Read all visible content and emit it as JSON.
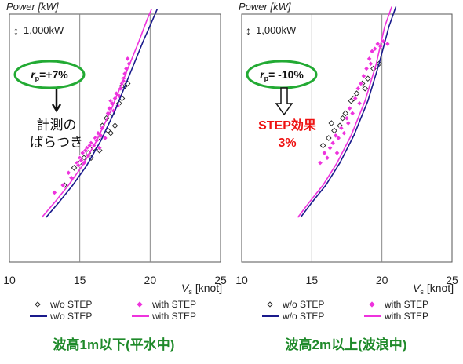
{
  "colors": {
    "without": "#1a1a8c",
    "with": "#ee33dd",
    "green": "#22aa33",
    "red": "#ee1111",
    "caption": "#1f8a2a"
  },
  "icons": {
    "scale_arrow": "updown-arrow-icon",
    "down_arrow": "down-arrow-icon",
    "hollow_down_arrow": "hollow-down-arrow-icon"
  },
  "chart_data": [
    {
      "type": "scatter",
      "title": "",
      "ylabel": "Power [kW]",
      "xlabel_var": "V",
      "xlabel_sub": "s",
      "xlabel_unit": "[knot]",
      "xlim": [
        10,
        25
      ],
      "x_ticks": [
        "10",
        "15",
        "20",
        "25"
      ],
      "grid_x": [
        15,
        20
      ],
      "scale_note": "1,000kW",
      "rp_prefix": "r",
      "rp_sub": "p",
      "rp_value": "=+7%",
      "annotation_lines": [
        "計測の",
        "ばらつき"
      ],
      "caption": "波高1m以下(平水中)",
      "legend": [
        {
          "marker": "diamond",
          "label": "w/o STEP"
        },
        {
          "marker": "diamond",
          "label": "with STEP"
        },
        {
          "marker": "line",
          "label": "w/o STEP"
        },
        {
          "marker": "line",
          "label": "with STEP"
        }
      ],
      "series": [
        {
          "name": "w/o STEP",
          "kind": "scatter",
          "points": [
            [
              13.9,
              0.31
            ],
            [
              14.6,
              0.38
            ],
            [
              15.0,
              0.4
            ],
            [
              15.3,
              0.42
            ],
            [
              15.6,
              0.44
            ],
            [
              16.0,
              0.46
            ],
            [
              16.3,
              0.5
            ],
            [
              16.6,
              0.55
            ],
            [
              16.9,
              0.58
            ],
            [
              17.2,
              0.52
            ],
            [
              17.5,
              0.55
            ],
            [
              17.8,
              0.64
            ],
            [
              18.0,
              0.66
            ],
            [
              18.2,
              0.71
            ],
            [
              18.4,
              0.72
            ],
            [
              15.8,
              0.42
            ],
            [
              16.4,
              0.45
            ],
            [
              17.0,
              0.53
            ],
            [
              18.0,
              0.71
            ],
            [
              17.3,
              0.6
            ]
          ]
        },
        {
          "name": "with STEP",
          "kind": "scatter",
          "points": [
            [
              13.2,
              0.28
            ],
            [
              13.8,
              0.31
            ],
            [
              14.2,
              0.36
            ],
            [
              14.8,
              0.4
            ],
            [
              15.0,
              0.42
            ],
            [
              15.2,
              0.44
            ],
            [
              15.3,
              0.4
            ],
            [
              15.5,
              0.46
            ],
            [
              15.6,
              0.43
            ],
            [
              15.8,
              0.48
            ],
            [
              16.0,
              0.47
            ],
            [
              16.1,
              0.5
            ],
            [
              16.3,
              0.52
            ],
            [
              16.4,
              0.46
            ],
            [
              16.6,
              0.54
            ],
            [
              16.8,
              0.5
            ],
            [
              17.0,
              0.6
            ],
            [
              17.1,
              0.62
            ],
            [
              17.2,
              0.65
            ],
            [
              17.4,
              0.61
            ],
            [
              17.5,
              0.66
            ],
            [
              17.7,
              0.63
            ],
            [
              17.8,
              0.67
            ],
            [
              17.9,
              0.7
            ],
            [
              18.0,
              0.72
            ],
            [
              18.1,
              0.74
            ],
            [
              18.2,
              0.76
            ],
            [
              18.3,
              0.78
            ],
            [
              18.4,
              0.82
            ],
            [
              18.5,
              0.8
            ],
            [
              14.4,
              0.34
            ],
            [
              14.9,
              0.39
            ],
            [
              15.1,
              0.41
            ],
            [
              15.4,
              0.45
            ],
            [
              15.7,
              0.47
            ],
            [
              16.2,
              0.49
            ],
            [
              16.5,
              0.51
            ],
            [
              17.3,
              0.64
            ],
            [
              17.6,
              0.68
            ],
            [
              18.1,
              0.73
            ]
          ]
        },
        {
          "name": "w/o STEP",
          "kind": "line",
          "points": [
            [
              12.6,
              0.18
            ],
            [
              13.5,
              0.24
            ],
            [
              14.5,
              0.31
            ],
            [
              15.5,
              0.39
            ],
            [
              16.5,
              0.49
            ],
            [
              17.5,
              0.61
            ],
            [
              18.5,
              0.75
            ],
            [
              19.5,
              0.89
            ],
            [
              20.2,
              0.98
            ],
            [
              20.5,
              1.02
            ]
          ]
        },
        {
          "name": "with STEP",
          "kind": "line",
          "points": [
            [
              12.3,
              0.18
            ],
            [
              13.2,
              0.24
            ],
            [
              14.2,
              0.31
            ],
            [
              15.2,
              0.39
            ],
            [
              16.2,
              0.49
            ],
            [
              17.2,
              0.61
            ],
            [
              18.2,
              0.75
            ],
            [
              19.2,
              0.89
            ],
            [
              19.8,
              0.98
            ],
            [
              20.1,
              1.02
            ]
          ]
        }
      ]
    },
    {
      "type": "scatter",
      "title": "",
      "ylabel": "Power [kW]",
      "xlabel_var": "V",
      "xlabel_sub": "s",
      "xlabel_unit": "[knot]",
      "xlim": [
        10,
        25
      ],
      "x_ticks": [
        "10",
        "15",
        "20",
        "25"
      ],
      "grid_x": [
        15,
        20
      ],
      "scale_note": "1,000kW",
      "rp_prefix": "r",
      "rp_sub": "p",
      "rp_value": "= -10%",
      "annotation_lines": [
        "STEP効果",
        "3%"
      ],
      "caption": "波高2m以上(波浪中)",
      "legend": [
        {
          "marker": "diamond",
          "label": "w/o STEP"
        },
        {
          "marker": "diamond",
          "label": "with STEP"
        },
        {
          "marker": "line",
          "label": "w/o STEP"
        },
        {
          "marker": "line",
          "label": "with STEP"
        }
      ],
      "series": [
        {
          "name": "w/o STEP",
          "kind": "scatter",
          "points": [
            [
              15.8,
              0.47
            ],
            [
              16.2,
              0.5
            ],
            [
              16.6,
              0.53
            ],
            [
              17.0,
              0.55
            ],
            [
              17.4,
              0.6
            ],
            [
              17.8,
              0.65
            ],
            [
              18.2,
              0.68
            ],
            [
              18.6,
              0.72
            ],
            [
              19.0,
              0.74
            ],
            [
              19.4,
              0.78
            ],
            [
              19.8,
              0.8
            ],
            [
              16.4,
              0.56
            ],
            [
              17.2,
              0.58
            ],
            [
              18.0,
              0.66
            ],
            [
              18.8,
              0.7
            ]
          ]
        },
        {
          "name": "with STEP",
          "kind": "scatter",
          "points": [
            [
              15.6,
              0.4
            ],
            [
              15.9,
              0.44
            ],
            [
              16.1,
              0.42
            ],
            [
              16.3,
              0.46
            ],
            [
              16.5,
              0.48
            ],
            [
              16.7,
              0.51
            ],
            [
              16.9,
              0.5
            ],
            [
              17.1,
              0.54
            ],
            [
              17.3,
              0.52
            ],
            [
              17.5,
              0.58
            ],
            [
              17.7,
              0.62
            ],
            [
              17.9,
              0.6
            ],
            [
              18.1,
              0.66
            ],
            [
              18.3,
              0.7
            ],
            [
              18.5,
              0.72
            ],
            [
              18.7,
              0.75
            ],
            [
              18.9,
              0.78
            ],
            [
              19.1,
              0.82
            ],
            [
              19.3,
              0.85
            ],
            [
              19.5,
              0.86
            ],
            [
              19.7,
              0.88
            ],
            [
              19.9,
              0.87
            ],
            [
              20.1,
              0.89
            ],
            [
              20.4,
              0.88
            ],
            [
              16.8,
              0.44
            ],
            [
              17.6,
              0.56
            ],
            [
              18.4,
              0.64
            ],
            [
              19.2,
              0.8
            ]
          ]
        },
        {
          "name": "w/o STEP",
          "kind": "line",
          "points": [
            [
              14.2,
              0.18
            ],
            [
              15.0,
              0.24
            ],
            [
              16.0,
              0.31
            ],
            [
              17.0,
              0.4
            ],
            [
              18.0,
              0.51
            ],
            [
              19.0,
              0.65
            ],
            [
              19.8,
              0.8
            ],
            [
              20.5,
              0.95
            ],
            [
              21.0,
              1.03
            ]
          ]
        },
        {
          "name": "with STEP",
          "kind": "line",
          "points": [
            [
              14.0,
              0.18
            ],
            [
              14.8,
              0.24
            ],
            [
              15.8,
              0.31
            ],
            [
              16.8,
              0.4
            ],
            [
              17.8,
              0.51
            ],
            [
              18.8,
              0.65
            ],
            [
              19.6,
              0.8
            ],
            [
              20.2,
              0.95
            ],
            [
              20.7,
              1.03
            ]
          ]
        }
      ]
    }
  ]
}
